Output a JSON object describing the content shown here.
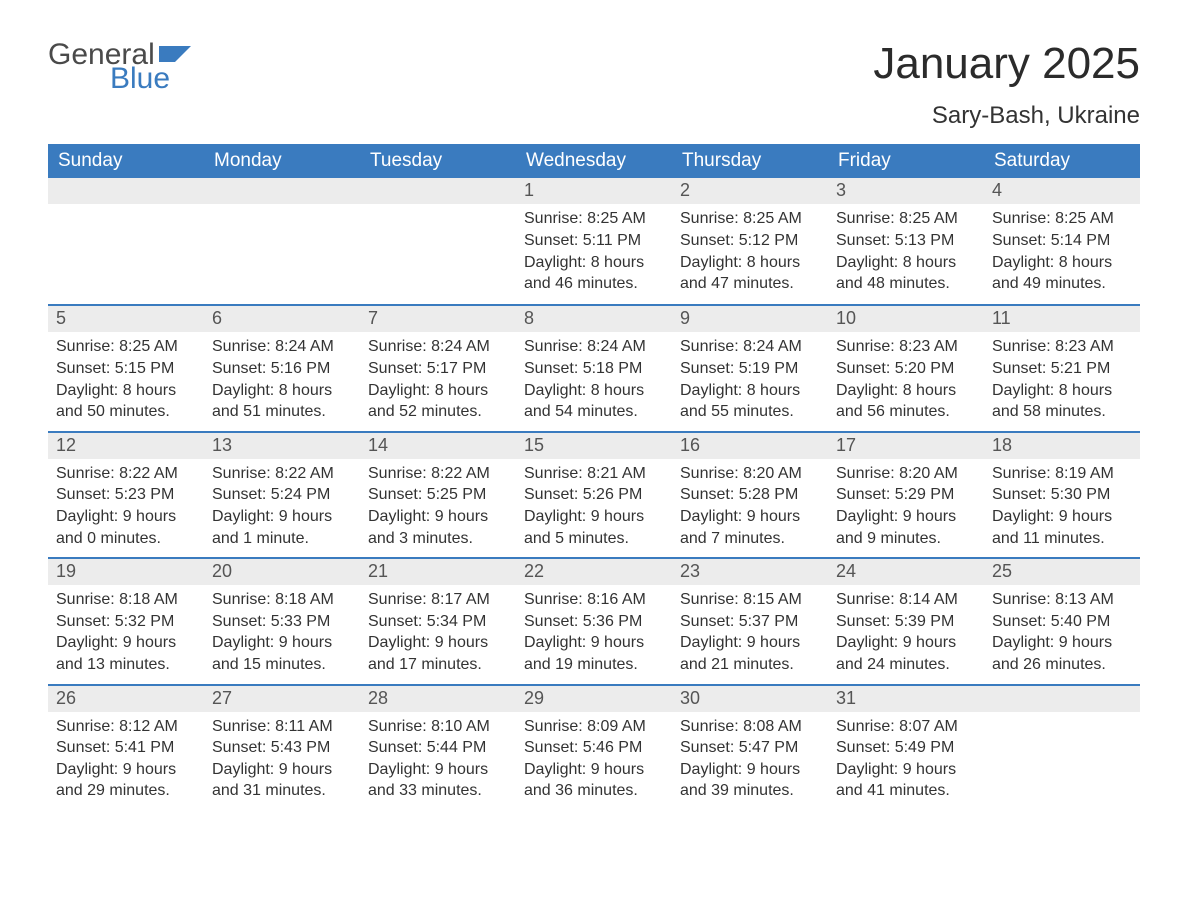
{
  "brand": {
    "word1": "General",
    "word2": "Blue",
    "word1_color": "#4a4a4a",
    "word2_color": "#3a7bbf",
    "flag_color": "#3a7bbf"
  },
  "title": "January 2025",
  "location": "Sary-Bash, Ukraine",
  "colors": {
    "header_bg": "#3a7bbf",
    "header_fg": "#ffffff",
    "daynum_bg": "#ececec",
    "row_divider": "#3a7bbf",
    "text": "#333333",
    "background": "#ffffff"
  },
  "day_headers": [
    "Sunday",
    "Monday",
    "Tuesday",
    "Wednesday",
    "Thursday",
    "Friday",
    "Saturday"
  ],
  "weeks": [
    [
      null,
      null,
      null,
      {
        "n": "1",
        "sunrise": "8:25 AM",
        "sunset": "5:11 PM",
        "dl1": "8 hours",
        "dl2": "and 46 minutes."
      },
      {
        "n": "2",
        "sunrise": "8:25 AM",
        "sunset": "5:12 PM",
        "dl1": "8 hours",
        "dl2": "and 47 minutes."
      },
      {
        "n": "3",
        "sunrise": "8:25 AM",
        "sunset": "5:13 PM",
        "dl1": "8 hours",
        "dl2": "and 48 minutes."
      },
      {
        "n": "4",
        "sunrise": "8:25 AM",
        "sunset": "5:14 PM",
        "dl1": "8 hours",
        "dl2": "and 49 minutes."
      }
    ],
    [
      {
        "n": "5",
        "sunrise": "8:25 AM",
        "sunset": "5:15 PM",
        "dl1": "8 hours",
        "dl2": "and 50 minutes."
      },
      {
        "n": "6",
        "sunrise": "8:24 AM",
        "sunset": "5:16 PM",
        "dl1": "8 hours",
        "dl2": "and 51 minutes."
      },
      {
        "n": "7",
        "sunrise": "8:24 AM",
        "sunset": "5:17 PM",
        "dl1": "8 hours",
        "dl2": "and 52 minutes."
      },
      {
        "n": "8",
        "sunrise": "8:24 AM",
        "sunset": "5:18 PM",
        "dl1": "8 hours",
        "dl2": "and 54 minutes."
      },
      {
        "n": "9",
        "sunrise": "8:24 AM",
        "sunset": "5:19 PM",
        "dl1": "8 hours",
        "dl2": "and 55 minutes."
      },
      {
        "n": "10",
        "sunrise": "8:23 AM",
        "sunset": "5:20 PM",
        "dl1": "8 hours",
        "dl2": "and 56 minutes."
      },
      {
        "n": "11",
        "sunrise": "8:23 AM",
        "sunset": "5:21 PM",
        "dl1": "8 hours",
        "dl2": "and 58 minutes."
      }
    ],
    [
      {
        "n": "12",
        "sunrise": "8:22 AM",
        "sunset": "5:23 PM",
        "dl1": "9 hours",
        "dl2": "and 0 minutes."
      },
      {
        "n": "13",
        "sunrise": "8:22 AM",
        "sunset": "5:24 PM",
        "dl1": "9 hours",
        "dl2": "and 1 minute."
      },
      {
        "n": "14",
        "sunrise": "8:22 AM",
        "sunset": "5:25 PM",
        "dl1": "9 hours",
        "dl2": "and 3 minutes."
      },
      {
        "n": "15",
        "sunrise": "8:21 AM",
        "sunset": "5:26 PM",
        "dl1": "9 hours",
        "dl2": "and 5 minutes."
      },
      {
        "n": "16",
        "sunrise": "8:20 AM",
        "sunset": "5:28 PM",
        "dl1": "9 hours",
        "dl2": "and 7 minutes."
      },
      {
        "n": "17",
        "sunrise": "8:20 AM",
        "sunset": "5:29 PM",
        "dl1": "9 hours",
        "dl2": "and 9 minutes."
      },
      {
        "n": "18",
        "sunrise": "8:19 AM",
        "sunset": "5:30 PM",
        "dl1": "9 hours",
        "dl2": "and 11 minutes."
      }
    ],
    [
      {
        "n": "19",
        "sunrise": "8:18 AM",
        "sunset": "5:32 PM",
        "dl1": "9 hours",
        "dl2": "and 13 minutes."
      },
      {
        "n": "20",
        "sunrise": "8:18 AM",
        "sunset": "5:33 PM",
        "dl1": "9 hours",
        "dl2": "and 15 minutes."
      },
      {
        "n": "21",
        "sunrise": "8:17 AM",
        "sunset": "5:34 PM",
        "dl1": "9 hours",
        "dl2": "and 17 minutes."
      },
      {
        "n": "22",
        "sunrise": "8:16 AM",
        "sunset": "5:36 PM",
        "dl1": "9 hours",
        "dl2": "and 19 minutes."
      },
      {
        "n": "23",
        "sunrise": "8:15 AM",
        "sunset": "5:37 PM",
        "dl1": "9 hours",
        "dl2": "and 21 minutes."
      },
      {
        "n": "24",
        "sunrise": "8:14 AM",
        "sunset": "5:39 PM",
        "dl1": "9 hours",
        "dl2": "and 24 minutes."
      },
      {
        "n": "25",
        "sunrise": "8:13 AM",
        "sunset": "5:40 PM",
        "dl1": "9 hours",
        "dl2": "and 26 minutes."
      }
    ],
    [
      {
        "n": "26",
        "sunrise": "8:12 AM",
        "sunset": "5:41 PM",
        "dl1": "9 hours",
        "dl2": "and 29 minutes."
      },
      {
        "n": "27",
        "sunrise": "8:11 AM",
        "sunset": "5:43 PM",
        "dl1": "9 hours",
        "dl2": "and 31 minutes."
      },
      {
        "n": "28",
        "sunrise": "8:10 AM",
        "sunset": "5:44 PM",
        "dl1": "9 hours",
        "dl2": "and 33 minutes."
      },
      {
        "n": "29",
        "sunrise": "8:09 AM",
        "sunset": "5:46 PM",
        "dl1": "9 hours",
        "dl2": "and 36 minutes."
      },
      {
        "n": "30",
        "sunrise": "8:08 AM",
        "sunset": "5:47 PM",
        "dl1": "9 hours",
        "dl2": "and 39 minutes."
      },
      {
        "n": "31",
        "sunrise": "8:07 AM",
        "sunset": "5:49 PM",
        "dl1": "9 hours",
        "dl2": "and 41 minutes."
      },
      null
    ]
  ],
  "labels": {
    "sunrise_prefix": "Sunrise: ",
    "sunset_prefix": "Sunset: ",
    "daylight_prefix": "Daylight: "
  }
}
